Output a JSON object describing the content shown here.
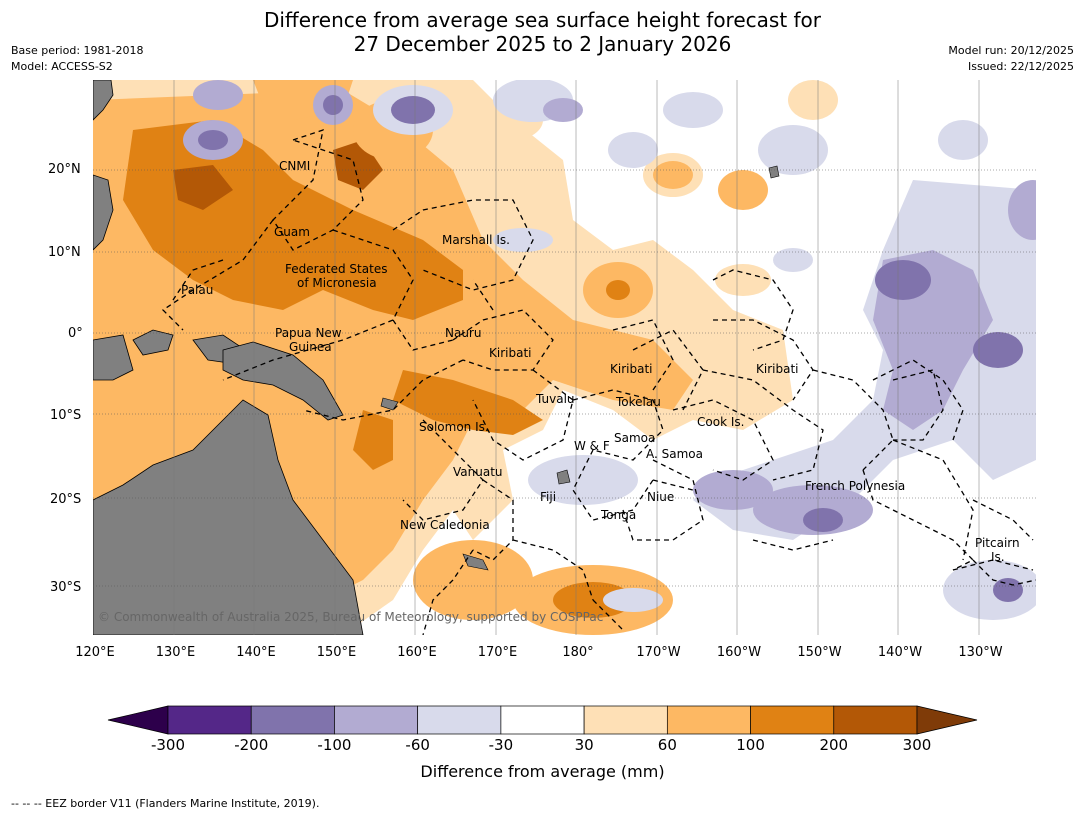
{
  "title": {
    "line1": "Difference from average sea surface height forecast for",
    "line2": "27 December 2025 to 2 January 2026"
  },
  "meta": {
    "base_period": "Base period: 1981-2018",
    "model": "Model: ACCESS-S2",
    "model_run": "Model run: 20/12/2025",
    "issued": "Issued: 22/12/2025"
  },
  "axes": {
    "lon_labels": [
      "120°E",
      "130°E",
      "140°E",
      "150°E",
      "160°E",
      "170°E",
      "180°",
      "170°W",
      "160°W",
      "150°W",
      "140°W",
      "130°W"
    ],
    "lat_labels": [
      "20°N",
      "10°N",
      "0°",
      "10°S",
      "20°S",
      "30°S"
    ]
  },
  "places": {
    "cnmi": "CNMI",
    "guam": "Guam",
    "marshall": "Marshall Is.",
    "fsm1": "Federated States",
    "fsm2": "of Micronesia",
    "palau": "Palau",
    "png1": "Papua New",
    "png2": "Guinea",
    "nauru": "Nauru",
    "kiribati_w": "Kiribati",
    "kiribati_c": "Kiribati",
    "kiribati_e": "Kiribati",
    "tuvalu": "Tuvalu",
    "tokelau": "Tokelau",
    "cook": "Cook Is.",
    "solomon": "Solomon Is.",
    "samoa": "Samoa",
    "wf": "W & F",
    "asamoa": "A. Samoa",
    "vanuatu": "Vanuatu",
    "fiji": "Fiji",
    "niue": "Niue",
    "tonga": "Tonga",
    "frpoly": "French Polynesia",
    "newcal": "New Caledonia",
    "pitcairn1": "Pitcairn",
    "pitcairn2": "Is."
  },
  "copyright": "© Commonwealth of Australia 2025, Bureau of Meteorology, supported by COSPPac",
  "colorbar": {
    "title": "Difference from average (mm)",
    "ticks": [
      "-300",
      "-200",
      "-100",
      "-60",
      "-30",
      "30",
      "60",
      "100",
      "200",
      "300"
    ],
    "colors": {
      "below_min": "#2d004b",
      "c1": "#542788",
      "c2": "#8073ac",
      "c3": "#b2abd2",
      "c4": "#d8daeb",
      "c5": "#ffffff",
      "c6": "#fee0b6",
      "c7": "#fdb863",
      "c8": "#e08214",
      "c9": "#b35806",
      "above_max": "#7f3b08"
    }
  },
  "footnote": "--  --  -- EEZ border V11 (Flanders Marine Institute, 2019)."
}
